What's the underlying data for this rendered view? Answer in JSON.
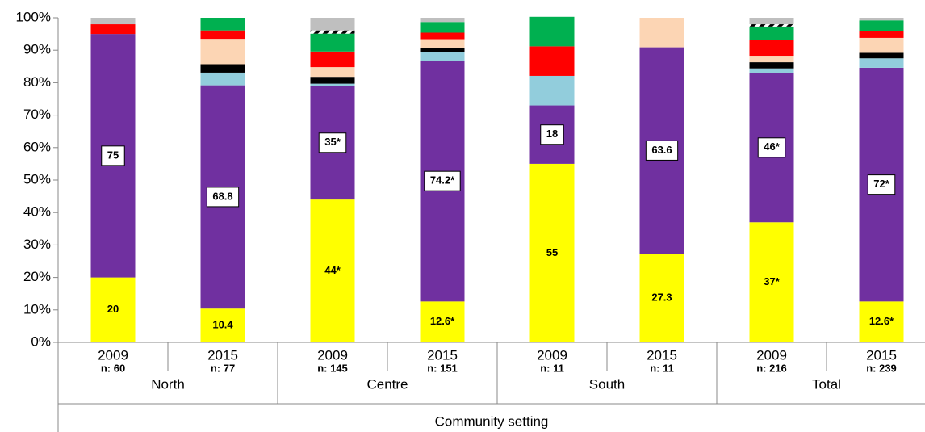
{
  "chart_data": {
    "type": "stacked_bar",
    "categories": [
      "2009",
      "2015",
      "2009",
      "2015",
      "2009",
      "2015",
      "2009",
      "2015"
    ],
    "n_labels": [
      "n: 60",
      "n: 77",
      "n: 145",
      "n: 151",
      "n: 11",
      "n: 11",
      "n: 216",
      "n: 239"
    ],
    "groups": [
      "North",
      "Centre",
      "South",
      "Total"
    ],
    "x_label": "Community setting",
    "ylim": [
      0,
      100
    ],
    "yticks": [
      {
        "value": 0,
        "label": "0%"
      },
      {
        "value": 10,
        "label": "10%"
      },
      {
        "value": 20,
        "label": "20%"
      },
      {
        "value": 30,
        "label": "30%"
      },
      {
        "value": 40,
        "label": "40%"
      },
      {
        "value": 50,
        "label": "50%"
      },
      {
        "value": 60,
        "label": "60%"
      },
      {
        "value": 70,
        "label": "70%"
      },
      {
        "value": 80,
        "label": "80%"
      },
      {
        "value": 90,
        "label": "90%"
      },
      {
        "value": 100,
        "label": "100%"
      }
    ],
    "series": [
      {
        "color": "#ffff00",
        "values": [
          20,
          10.4,
          44,
          12.6,
          55,
          27.3,
          37,
          12.6
        ],
        "value_labels": [
          "20",
          "10.4",
          "44*",
          "12.6*",
          "55",
          "27.3",
          "37*",
          "12.6*"
        ],
        "label_box": false
      },
      {
        "color": "#7030a0",
        "values": [
          75,
          68.8,
          35,
          74.2,
          18,
          63.6,
          46,
          72
        ],
        "value_labels": [
          "75",
          "68.8",
          "35*",
          "74.2*",
          "18",
          "63.6",
          "46*",
          "72*"
        ],
        "label_box": true
      },
      {
        "color": "#92cddc",
        "values": [
          0,
          3.9,
          0.7,
          2.6,
          9.1,
          0,
          1.4,
          2.9
        ]
      },
      {
        "color": "#000000",
        "values": [
          0,
          2.6,
          2.1,
          1.3,
          0,
          0,
          1.9,
          1.7
        ]
      },
      {
        "color": "#fcd5b4",
        "values": [
          0,
          7.8,
          3,
          2.7,
          0,
          9.1,
          2,
          4.6
        ]
      },
      {
        "color": "#ff0000",
        "values": [
          3,
          2.6,
          4.8,
          2,
          9.1,
          0,
          4.8,
          2.1
        ]
      },
      {
        "color": "#00b050",
        "values": [
          0,
          3.9,
          5.5,
          3.3,
          9.1,
          0,
          4.2,
          3.3
        ]
      },
      {
        "color": "#000000",
        "hatch": true,
        "values": [
          0,
          0,
          1,
          0,
          0,
          0,
          0.7,
          0
        ]
      },
      {
        "color": "#bfbfbf",
        "values": [
          2,
          0,
          3.9,
          1.3,
          0,
          0,
          2,
          0.8
        ]
      }
    ]
  }
}
